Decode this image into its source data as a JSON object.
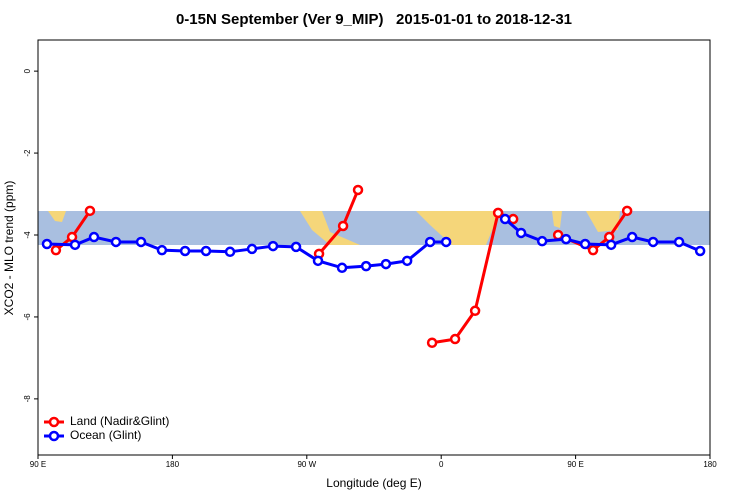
{
  "chart_data": {
    "type": "line",
    "title": "0-15N September (Ver 9_MIP)   2015-01-01 to 2018-12-31",
    "xlabel": "Longitude (deg E)",
    "ylabel": "XCO2 - MLO trend (ppm)",
    "xlim": [
      90,
      540
    ],
    "xticks": [
      {
        "value": 90,
        "label": "90 E"
      },
      180,
      {
        "value": 270,
        "label": "90 W"
      },
      {
        "value": 360,
        "label": "0"
      },
      {
        "value": 450,
        "label": "90 E"
      },
      {
        "value": 540,
        "label": "180"
      }
    ],
    "ylim": [
      -9.37,
      0.76
    ],
    "yticks": [
      0,
      -2,
      -4,
      -6,
      -8
    ],
    "legend": "bottom-left",
    "series": [
      {
        "name": "Land (Nadir&Glint)",
        "color": "#ff0000",
        "x": [
          102,
          112.8,
          124.8,
          200,
          278.2,
          294.3,
          304.3,
          330,
          353.9,
          369.3,
          382.7,
          398.1,
          408.2,
          420,
          438.3,
          461.7,
          472.5,
          484.5
        ],
        "values": [
          -4.37,
          -4.05,
          -3.41,
          null,
          -4.46,
          -3.78,
          -2.9,
          null,
          -6.63,
          -6.54,
          -5.85,
          -3.46,
          -3.61,
          null,
          -4.0,
          -4.37,
          -4.05,
          -3.41
        ]
      },
      {
        "name": "Ocean (Glint)",
        "color": "#0000ff",
        "x": [
          96,
          114.8,
          127.5,
          142.2,
          159,
          173,
          188.5,
          202.5,
          218.6,
          233.3,
          247.4,
          262.8,
          277.5,
          293.6,
          309.7,
          323,
          337.2,
          352.6,
          363.3,
          383,
          402.8,
          413.5,
          427.6,
          443.6,
          456.4,
          473.8,
          487.9,
          501.9,
          519.3,
          533.4
        ],
        "values": [
          -4.22,
          -4.24,
          -4.05,
          -4.17,
          -4.17,
          -4.37,
          -4.39,
          -4.39,
          -4.41,
          -4.34,
          -4.27,
          -4.29,
          -4.63,
          -4.8,
          -4.76,
          -4.71,
          -4.63,
          -4.17,
          -4.17,
          null,
          -3.61,
          -3.95,
          -4.15,
          -4.1,
          -4.22,
          -4.24,
          -4.05,
          -4.17,
          -4.17,
          -4.39
        ]
      }
    ]
  }
}
